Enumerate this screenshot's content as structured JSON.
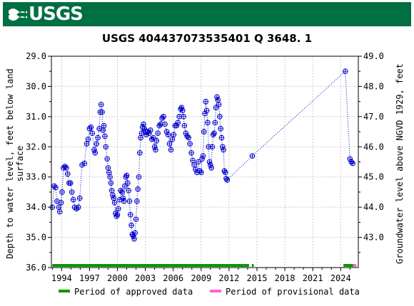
{
  "brand": {
    "logo_text": "USGS",
    "banner_color": "#006f41",
    "logo_icon": "usgs-wave-icon"
  },
  "chart_data": {
    "type": "scatter",
    "title": "USGS 404437073535401 Q  3648. 1",
    "ylabel_left": [
      "Depth to water level, feet below land",
      "surface"
    ],
    "ylabel_right": "Groundwater level above NGVD 1929, feet",
    "xlim": [
      1992.9,
      2025.9
    ],
    "ylim_left": [
      36.0,
      29.0
    ],
    "ylim_right": [
      42.0,
      49.0
    ],
    "x_ticks": [
      1994,
      1997,
      2000,
      2003,
      2006,
      2009,
      2012,
      2015,
      2018,
      2021,
      2024
    ],
    "x_tick_labels": [
      "1994",
      "1997",
      "2000",
      "2003",
      "2006",
      "2009",
      "2012",
      "2015",
      "2018",
      "2021",
      "2024"
    ],
    "y_ticks_left": [
      "29.0",
      "30.0",
      "31.0",
      "32.0",
      "33.0",
      "34.0",
      "35.0",
      "36.0"
    ],
    "y_ticks_right": [
      "49.0",
      "48.0",
      "47.0",
      "46.0",
      "45.0",
      "44.0",
      "43.0"
    ],
    "y_ticks_right_values": [
      49,
      48,
      47,
      46,
      45,
      44,
      43
    ],
    "series": [
      {
        "style": "circles joined by dotted line",
        "color": "#0000cc",
        "points": [
          [
            1993.0,
            34.0
          ],
          [
            1993.2,
            33.3
          ],
          [
            1993.35,
            33.35
          ],
          [
            1993.5,
            33.8
          ],
          [
            1993.7,
            34.0
          ],
          [
            1993.8,
            34.15
          ],
          [
            1993.95,
            33.85
          ],
          [
            1994.05,
            33.5
          ],
          [
            1994.2,
            32.7
          ],
          [
            1994.35,
            32.65
          ],
          [
            1994.5,
            32.7
          ],
          [
            1994.65,
            32.9
          ],
          [
            1994.8,
            33.2
          ],
          [
            1994.95,
            33.2
          ],
          [
            1995.1,
            33.5
          ],
          [
            1995.25,
            33.75
          ],
          [
            1995.4,
            34.0
          ],
          [
            1995.6,
            34.05
          ],
          [
            1995.8,
            34.0
          ],
          [
            1995.95,
            33.7
          ],
          [
            1996.2,
            32.6
          ],
          [
            1996.45,
            32.55
          ],
          [
            1996.7,
            31.9
          ],
          [
            1996.85,
            31.75
          ],
          [
            1997.0,
            31.4
          ],
          [
            1997.15,
            31.35
          ],
          [
            1997.3,
            31.55
          ],
          [
            1997.5,
            32.1
          ],
          [
            1997.6,
            32.2
          ],
          [
            1997.75,
            31.9
          ],
          [
            1997.9,
            31.7
          ],
          [
            1998.05,
            31.4
          ],
          [
            1998.15,
            30.85
          ],
          [
            1998.25,
            30.6
          ],
          [
            1998.35,
            30.85
          ],
          [
            1998.45,
            31.45
          ],
          [
            1998.55,
            31.3
          ],
          [
            1998.65,
            31.65
          ],
          [
            1998.75,
            32.0
          ],
          [
            1998.9,
            32.4
          ],
          [
            1999.0,
            32.7
          ],
          [
            1999.1,
            32.85
          ],
          [
            1999.2,
            33.0
          ],
          [
            1999.3,
            33.2
          ],
          [
            1999.4,
            33.45
          ],
          [
            1999.5,
            33.6
          ],
          [
            1999.6,
            33.7
          ],
          [
            1999.7,
            33.85
          ],
          [
            1999.8,
            34.2
          ],
          [
            1999.9,
            34.3
          ],
          [
            2000.0,
            34.25
          ],
          [
            2000.1,
            34.05
          ],
          [
            2000.25,
            33.75
          ],
          [
            2000.35,
            33.45
          ],
          [
            2000.5,
            33.5
          ],
          [
            2000.6,
            33.7
          ],
          [
            2000.7,
            33.8
          ],
          [
            2000.8,
            33.3
          ],
          [
            2000.9,
            33.0
          ],
          [
            2001.0,
            32.95
          ],
          [
            2001.1,
            33.2
          ],
          [
            2001.2,
            33.45
          ],
          [
            2001.3,
            33.8
          ],
          [
            2001.4,
            34.25
          ],
          [
            2001.5,
            34.6
          ],
          [
            2001.6,
            34.9
          ],
          [
            2001.7,
            34.95
          ],
          [
            2001.8,
            35.05
          ],
          [
            2001.9,
            34.85
          ],
          [
            2002.0,
            34.4
          ],
          [
            2002.1,
            33.8
          ],
          [
            2002.2,
            33.4
          ],
          [
            2002.3,
            33.0
          ],
          [
            2002.4,
            32.2
          ],
          [
            2002.5,
            31.7
          ],
          [
            2002.6,
            31.55
          ],
          [
            2002.7,
            31.35
          ],
          [
            2002.8,
            31.25
          ],
          [
            2002.9,
            31.4
          ],
          [
            2003.0,
            31.5
          ],
          [
            2003.1,
            31.6
          ],
          [
            2003.25,
            31.5
          ],
          [
            2003.4,
            31.55
          ],
          [
            2003.55,
            31.45
          ],
          [
            2003.7,
            31.75
          ],
          [
            2003.85,
            31.7
          ],
          [
            2004.0,
            32.0
          ],
          [
            2004.1,
            32.1
          ],
          [
            2004.2,
            31.8
          ],
          [
            2004.35,
            31.55
          ],
          [
            2004.5,
            31.3
          ],
          [
            2004.65,
            31.25
          ],
          [
            2004.8,
            31.05
          ],
          [
            2004.95,
            31.0
          ],
          [
            2005.1,
            31.25
          ],
          [
            2005.3,
            31.5
          ],
          [
            2005.45,
            31.6
          ],
          [
            2005.6,
            31.9
          ],
          [
            2005.75,
            32.1
          ],
          [
            2005.9,
            31.75
          ],
          [
            2006.05,
            31.6
          ],
          [
            2006.2,
            31.3
          ],
          [
            2006.35,
            31.3
          ],
          [
            2006.5,
            31.2
          ],
          [
            2006.65,
            31.0
          ],
          [
            2006.8,
            30.75
          ],
          [
            2006.9,
            30.7
          ],
          [
            2007.0,
            30.8
          ],
          [
            2007.1,
            31.0
          ],
          [
            2007.2,
            31.3
          ],
          [
            2007.35,
            31.55
          ],
          [
            2007.5,
            31.65
          ],
          [
            2007.65,
            31.7
          ],
          [
            2007.8,
            31.9
          ],
          [
            2007.95,
            32.2
          ],
          [
            2008.1,
            32.45
          ],
          [
            2008.25,
            32.6
          ],
          [
            2008.4,
            32.75
          ],
          [
            2008.55,
            32.85
          ],
          [
            2008.7,
            32.5
          ],
          [
            2008.85,
            32.8
          ],
          [
            2009.0,
            32.85
          ],
          [
            2009.1,
            32.4
          ],
          [
            2009.2,
            32.3
          ],
          [
            2009.3,
            31.5
          ],
          [
            2009.4,
            30.9
          ],
          [
            2009.5,
            30.5
          ],
          [
            2009.6,
            30.8
          ],
          [
            2009.7,
            31.2
          ],
          [
            2009.8,
            32.0
          ],
          [
            2009.9,
            32.5
          ],
          [
            2010.0,
            32.6
          ],
          [
            2010.1,
            32.7
          ],
          [
            2010.2,
            32.0
          ],
          [
            2010.3,
            31.6
          ],
          [
            2010.4,
            31.55
          ],
          [
            2010.5,
            31.2
          ],
          [
            2010.6,
            30.7
          ],
          [
            2010.7,
            30.35
          ],
          [
            2010.8,
            30.45
          ],
          [
            2010.9,
            30.6
          ],
          [
            2011.0,
            31.0
          ],
          [
            2011.1,
            31.4
          ],
          [
            2011.2,
            31.7
          ],
          [
            2011.3,
            32.0
          ],
          [
            2011.4,
            32.1
          ],
          [
            2011.5,
            32.8
          ],
          [
            2011.6,
            32.85
          ],
          [
            2011.7,
            33.05
          ],
          [
            2011.8,
            33.1
          ],
          [
            2014.5,
            32.3
          ],
          [
            2024.5,
            29.5
          ],
          [
            2025.0,
            32.4
          ],
          [
            2025.15,
            32.5
          ],
          [
            2025.3,
            32.55
          ]
        ]
      }
    ],
    "periods": {
      "approved": {
        "label": "Period of approved data",
        "color": "#009900",
        "ranges": [
          [
            1993.0,
            2014.15
          ],
          [
            2014.45,
            2014.65
          ],
          [
            2024.3,
            2025.35
          ]
        ]
      },
      "provisional": {
        "label": "Period of provisional data",
        "color": "#ff66cc",
        "ranges": [
          [
            2025.35,
            2025.7
          ]
        ]
      }
    },
    "grid": true,
    "legend_position": "bottom"
  }
}
